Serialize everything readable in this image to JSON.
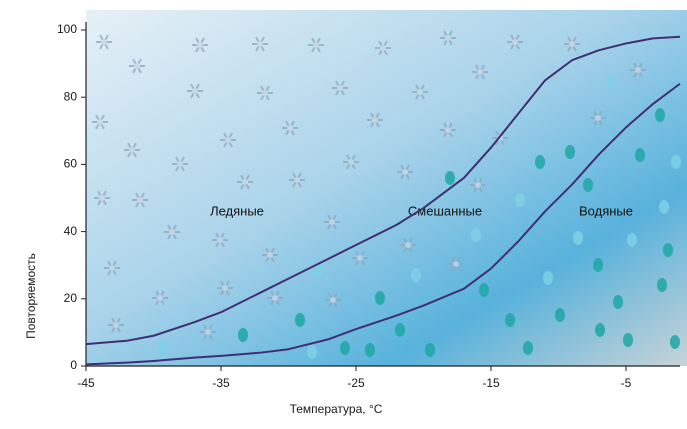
{
  "chart_data": {
    "type": "line",
    "x_label": "Температура, °C",
    "y_label": "Повторяемость",
    "annotations": [
      "Ледяные",
      "Смешанные",
      "Водяные"
    ],
    "x": [
      -45,
      -42,
      -40,
      -37,
      -35,
      -32,
      -30,
      -27,
      -25,
      -22,
      -20,
      -17,
      -15,
      -13,
      -11,
      -9,
      -7,
      -5,
      -3,
      -1
    ],
    "series": [
      {
        "color": "#3f2f72",
        "values": [
          6.5,
          7.5,
          9,
          13,
          16,
          22,
          26,
          32,
          36,
          42,
          47,
          56,
          65,
          75,
          85,
          91,
          94,
          96,
          97.5,
          98
        ]
      },
      {
        "color": "#3f2f72",
        "values": [
          0.5,
          1,
          1.5,
          2.5,
          3,
          4,
          5,
          8,
          11,
          15,
          18,
          23,
          29,
          37,
          46,
          54,
          63,
          71,
          78,
          84
        ]
      }
    ],
    "xlim": [
      -45,
      -1
    ],
    "ylim": [
      0,
      100
    ],
    "xticks": [
      -45,
      -35,
      -25,
      -15,
      -5
    ],
    "yticks": [
      0,
      20,
      40,
      60,
      80,
      100
    ],
    "grid": false
  }
}
